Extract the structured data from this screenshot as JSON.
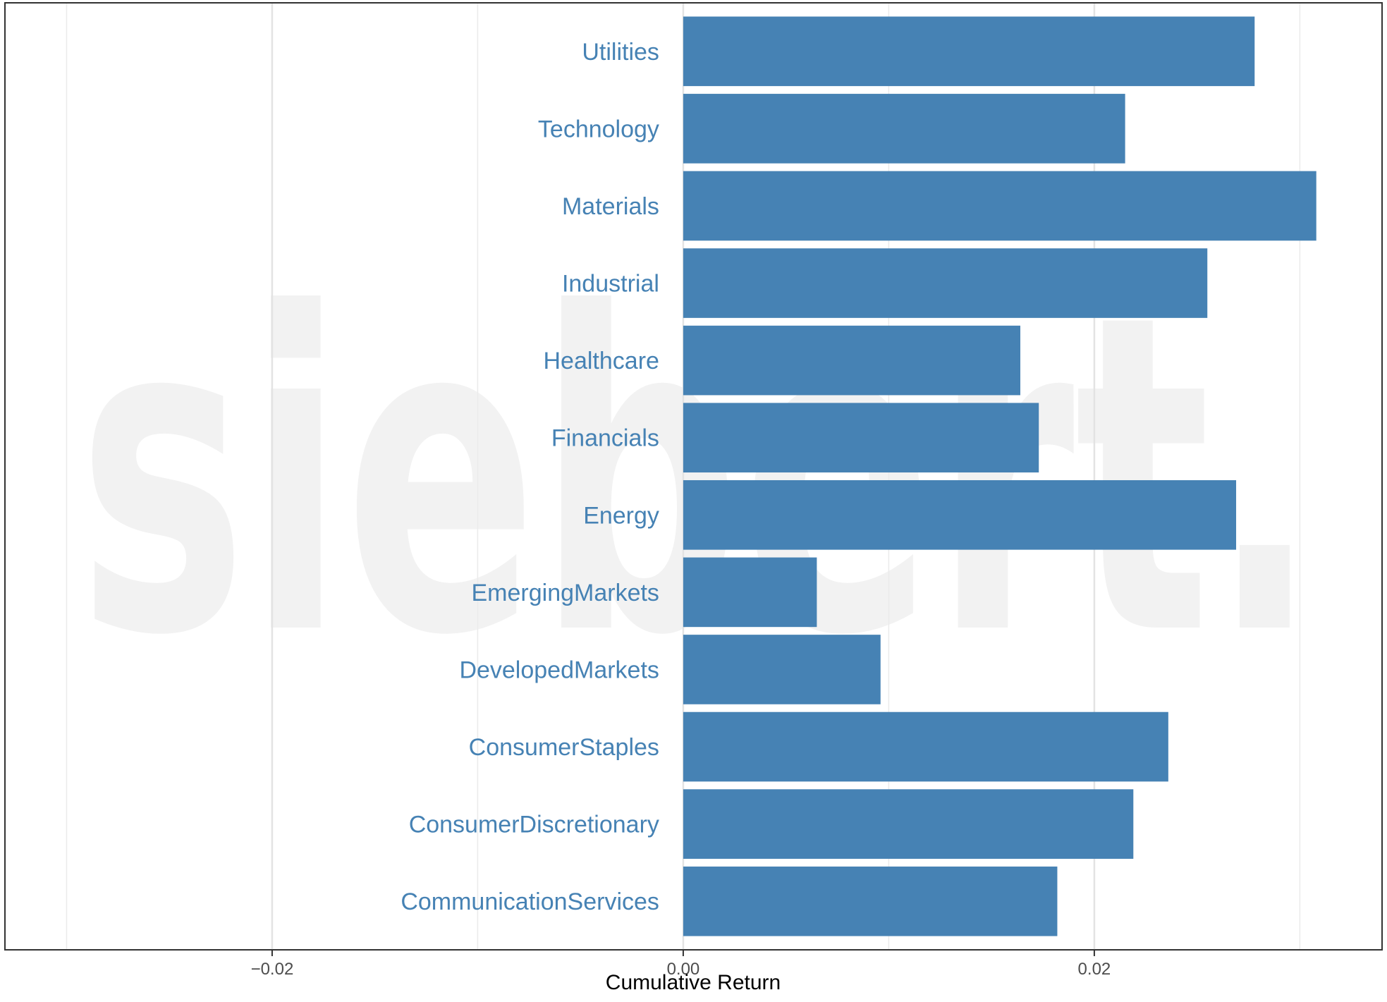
{
  "watermark": {
    "text": "siebert."
  },
  "chart_data": {
    "type": "bar",
    "orientation": "horizontal",
    "title": "",
    "xlabel": "Cumulative Return",
    "ylabel": "",
    "xlim": [
      -0.033,
      0.034
    ],
    "x_ticks": [
      -0.02,
      0.0,
      0.02
    ],
    "x_tick_labels": [
      "−0.02",
      "0.00",
      "0.02"
    ],
    "minor_gridlines": [
      -0.03,
      -0.01,
      0.01,
      0.03
    ],
    "grid": true,
    "categories": [
      "Utilities",
      "Technology",
      "Materials",
      "Industrial",
      "Healthcare",
      "Financials",
      "Energy",
      "EmergingMarkets",
      "DevelopedMarkets",
      "ConsumerStaples",
      "ConsumerDiscretionary",
      "CommunicationServices"
    ],
    "values": [
      0.0278,
      0.0215,
      0.0308,
      0.0255,
      0.0164,
      0.0173,
      0.0269,
      0.0065,
      0.0096,
      0.0236,
      0.0219,
      0.0182
    ],
    "bar_color": "#4682B4",
    "label_color": "#4682B4"
  }
}
